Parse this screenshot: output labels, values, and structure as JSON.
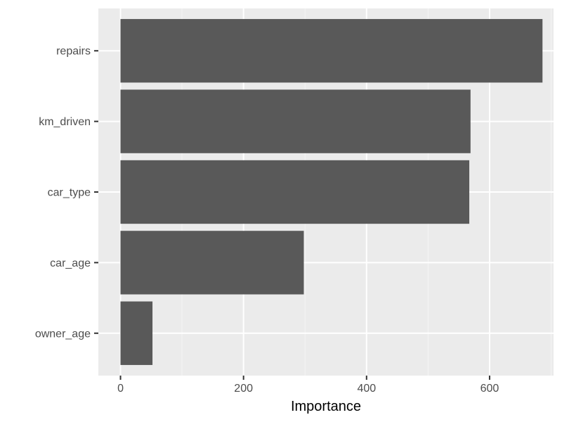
{
  "chart_data": {
    "type": "bar",
    "orientation": "horizontal",
    "categories": [
      "owner_age",
      "car_age",
      "car_type",
      "km_driven",
      "repairs"
    ],
    "values": [
      52,
      298,
      567,
      569,
      686
    ],
    "xlabel": "Importance",
    "ylabel": "",
    "xlim": [
      -36,
      704
    ],
    "x_ticks": [
      0,
      200,
      400,
      600
    ],
    "x_tick_labels": [
      "0",
      "200",
      "400",
      "600"
    ],
    "grid": true,
    "theme": "ggplot2 gray",
    "colors": {
      "panel_background": "#ebebeb",
      "grid_major": "#ffffff",
      "grid_minor": "#f5f5f5",
      "bar_fill": "#595959",
      "tick_text": "#4d4d4d",
      "tick_mark": "#333333",
      "axis_title": "#000000"
    }
  }
}
